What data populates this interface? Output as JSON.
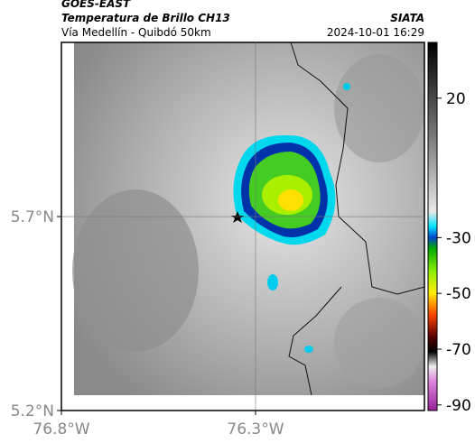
{
  "header": {
    "title": "GOES-EAST",
    "subtitle": "Temperatura de Brillo CH13",
    "source": "SIATA",
    "route": "Vía Medellín - Quibdó 50km",
    "datetime": "2024-10-01 16:29"
  },
  "map": {
    "lonlim": [
      -76.8,
      -75.865
    ],
    "latlim": [
      5.2,
      6.149
    ],
    "lonticks": [
      {
        "value": -76.8,
        "label": "76.8°W"
      },
      {
        "value": -76.3,
        "label": "76.3°W"
      }
    ],
    "latticks": [
      {
        "value": 5.7,
        "label": "5.7°N"
      },
      {
        "value": 5.2,
        "label": "5.2°N"
      }
    ],
    "grid": true
  },
  "colorbar": {
    "lim": [
      40,
      -92
    ],
    "ticks": [
      20,
      -30,
      -50,
      -70,
      -90
    ]
  }
}
